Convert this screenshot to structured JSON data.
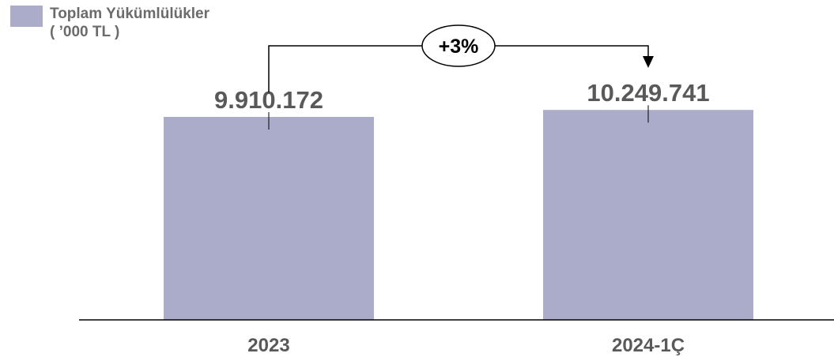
{
  "chart_data": {
    "type": "bar",
    "title": "Toplam Yükümlülükler",
    "subtitle": "( ’000 TL )",
    "categories": [
      "2023",
      "2024-1Ç"
    ],
    "series": [
      {
        "name": "Toplam Yükümlülükler",
        "values": [
          9910172,
          10249741
        ],
        "value_labels": [
          "9.910.172",
          "10.249.741"
        ]
      }
    ],
    "annotation": {
      "type": "change-arrow",
      "text": "+3%",
      "from": "2023",
      "to": "2024-1Ç"
    },
    "legend_position": "top-left",
    "grid": false
  },
  "colors": {
    "bar": "#abacca",
    "text": "#595959",
    "legend_text": "#6b6b6b",
    "axis": "#000000"
  }
}
